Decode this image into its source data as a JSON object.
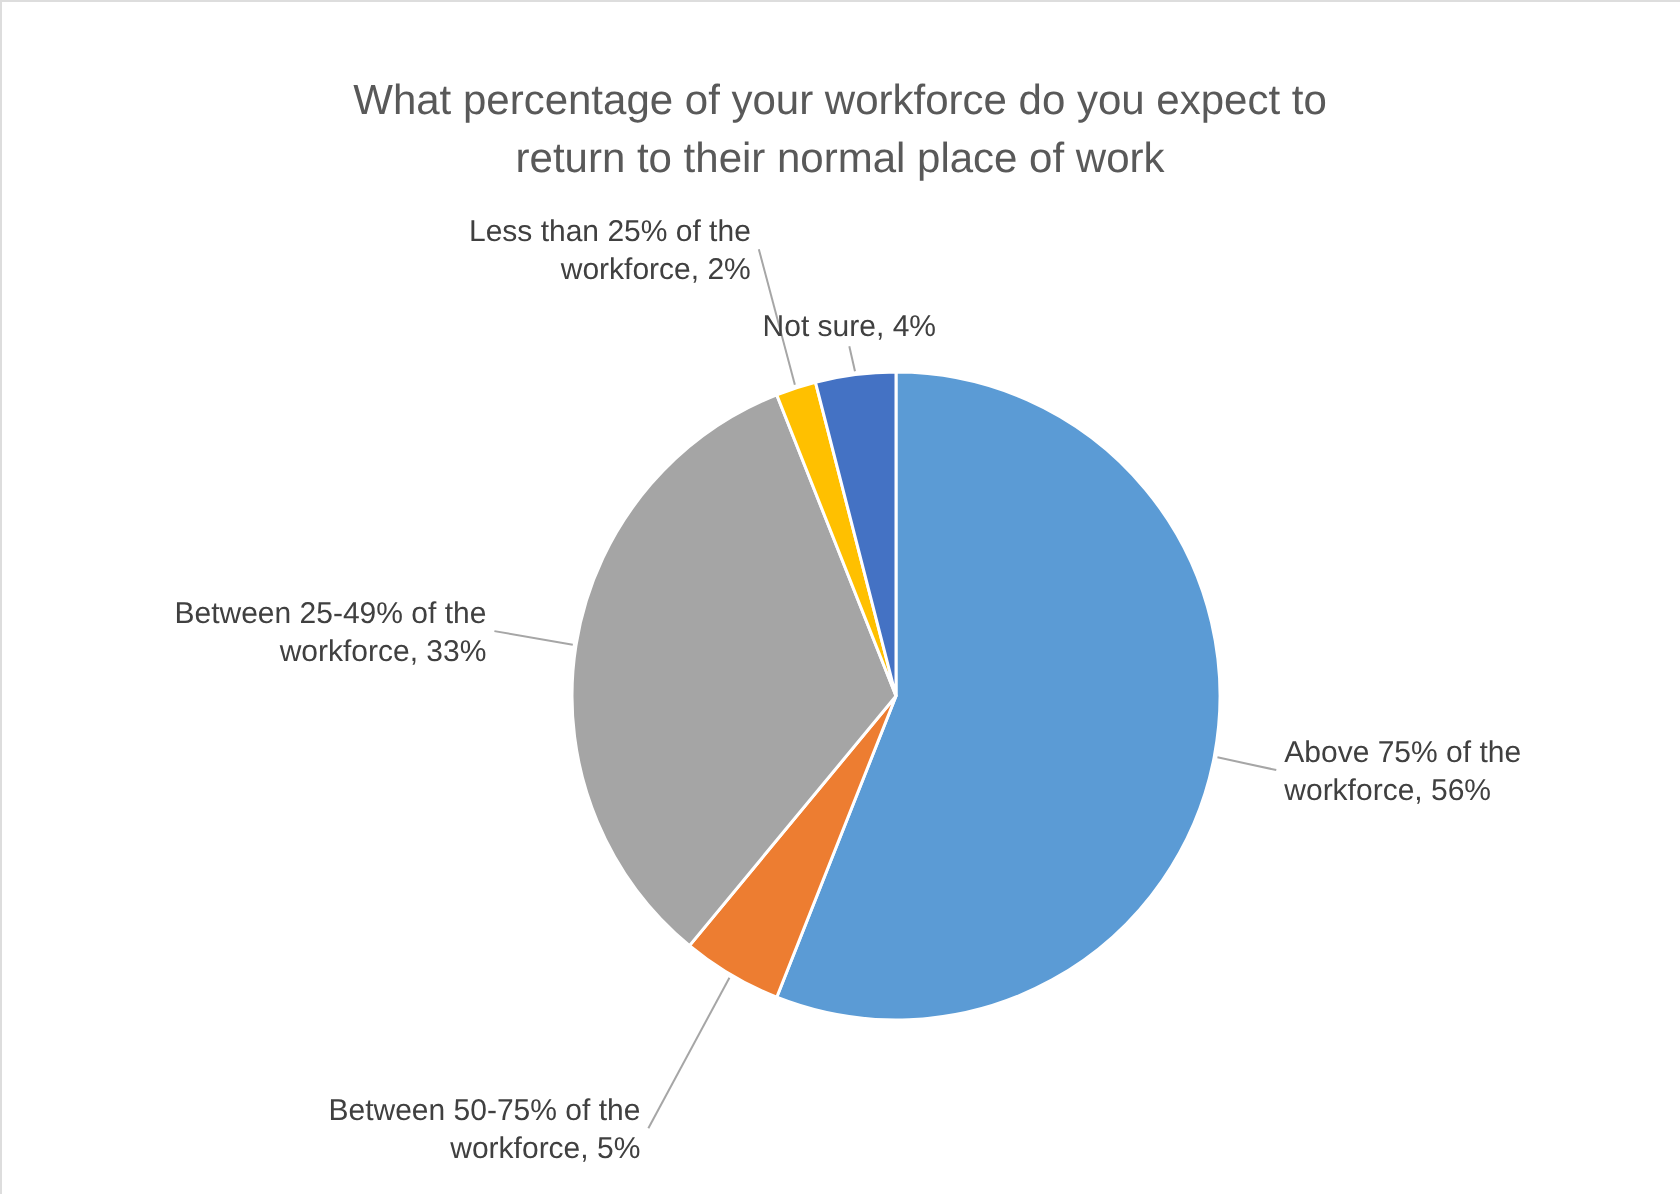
{
  "chart_data": {
    "type": "pie",
    "title": "What percentage of your workforce do you expect to return to their normal place of work",
    "categories": [
      "Above 75% of the workforce",
      "Between 50-75% of the workforce",
      "Between 25-49% of the workforce",
      "Less than 25% of the workforce",
      "Not sure"
    ],
    "values": [
      56,
      5,
      33,
      2,
      4
    ],
    "value_labels": [
      "56%",
      "5%",
      "33%",
      "2%",
      "4%"
    ],
    "colors": [
      "#5b9bd5",
      "#ed7d31",
      "#a5a5a5",
      "#ffc000",
      "#4472c4"
    ],
    "legend": false
  }
}
